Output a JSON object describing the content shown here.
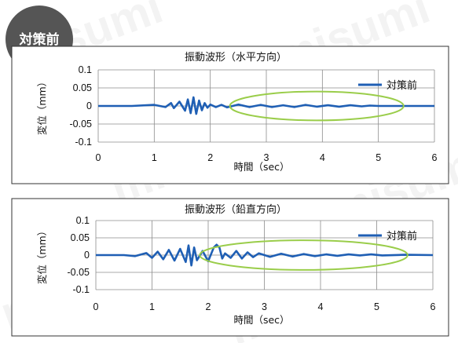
{
  "badge": {
    "label": "対策前",
    "color": "#555555"
  },
  "watermark": "misumi",
  "colors": {
    "series": "#1f5fb4",
    "highlight": "#9acd4a",
    "grid": "#8c8c8c",
    "frame": "#333333"
  },
  "chart_data": [
    {
      "type": "line",
      "title": "振動波形（水平方向）",
      "xlabel": "時間（sec）",
      "ylabel": "変位（mm）",
      "xlim": [
        0,
        6
      ],
      "ylim": [
        -0.1,
        0.1
      ],
      "x_ticks": [
        "0",
        "1",
        "2",
        "3",
        "4",
        "5",
        "6"
      ],
      "y_ticks": [
        "0.1",
        "0.05",
        "0",
        "-0.05",
        "-0.1"
      ],
      "grid": true,
      "legend_position": "top-right",
      "series": [
        {
          "name": "対策前",
          "x": [
            0,
            0.6,
            1.0,
            1.2,
            1.3,
            1.35,
            1.45,
            1.55,
            1.6,
            1.65,
            1.7,
            1.75,
            1.8,
            1.85,
            1.9,
            1.95,
            2.0,
            2.1,
            2.2,
            2.3,
            2.5,
            2.7,
            2.9,
            3.1,
            3.3,
            3.5,
            3.7,
            3.9,
            4.1,
            4.3,
            4.5,
            4.7,
            4.85,
            5.0,
            5.5,
            6.0
          ],
          "y": [
            0,
            0,
            0.003,
            -0.003,
            0.008,
            -0.006,
            0.012,
            -0.013,
            0.018,
            -0.02,
            0.024,
            -0.022,
            0.015,
            -0.012,
            0.008,
            -0.005,
            0.004,
            -0.003,
            0.003,
            -0.004,
            0.004,
            -0.003,
            0.003,
            -0.003,
            0.002,
            -0.003,
            0.003,
            -0.002,
            0.002,
            -0.002,
            0.002,
            -0.001,
            0.001,
            0,
            0,
            0
          ]
        }
      ],
      "annotation": {
        "type": "ellipse",
        "cx": 3.9,
        "cy": 0.0,
        "rx": 1.55,
        "ry": 0.04,
        "color": "#9acd4a"
      }
    },
    {
      "type": "line",
      "title": "振動波形（鉛直方向）",
      "xlabel": "時間（sec）",
      "ylabel": "変位（mm）",
      "xlim": [
        0,
        6
      ],
      "ylim": [
        -0.1,
        0.1
      ],
      "x_ticks": [
        "0",
        "1",
        "2",
        "3",
        "4",
        "5",
        "6"
      ],
      "y_ticks": [
        "0.1",
        "0.05",
        "0",
        "-0.05",
        "-0.1"
      ],
      "grid": true,
      "legend_position": "top-right",
      "series": [
        {
          "name": "対策前",
          "x": [
            0,
            0.5,
            0.7,
            0.9,
            1.0,
            1.1,
            1.2,
            1.3,
            1.4,
            1.5,
            1.6,
            1.65,
            1.7,
            1.75,
            1.8,
            1.9,
            2.0,
            2.1,
            2.15,
            2.2,
            2.25,
            2.3,
            2.4,
            2.5,
            2.6,
            2.7,
            2.8,
            2.9,
            3.1,
            3.3,
            3.5,
            3.7,
            3.9,
            4.1,
            4.3,
            4.5,
            4.7,
            4.9,
            5.1,
            5.5,
            6.0
          ],
          "y": [
            0,
            0,
            -0.003,
            0.006,
            -0.008,
            0.01,
            -0.012,
            0.015,
            -0.016,
            0.018,
            -0.02,
            0.028,
            -0.03,
            0.022,
            -0.015,
            0.012,
            -0.018,
            0.022,
            0.03,
            0.022,
            -0.01,
            0.005,
            -0.008,
            0.012,
            -0.01,
            0.008,
            -0.006,
            0.005,
            -0.005,
            0.004,
            -0.004,
            0.003,
            -0.003,
            0.002,
            -0.002,
            0.002,
            -0.001,
            0.002,
            -0.001,
            0.001,
            0
          ]
        }
      ],
      "annotation": {
        "type": "ellipse",
        "cx": 3.7,
        "cy": 0.0,
        "rx": 1.85,
        "ry": 0.043,
        "color": "#9acd4a"
      }
    }
  ]
}
